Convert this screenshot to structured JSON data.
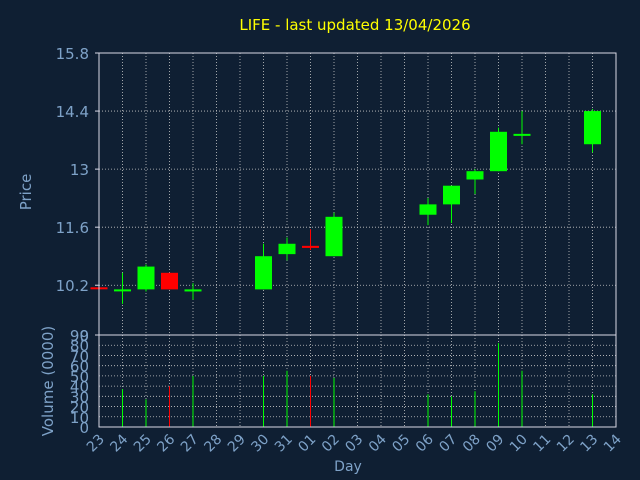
{
  "chart_data": {
    "type": "candlestick",
    "title": "LIFE - last updated 13/04/2026",
    "xlabel": "Day",
    "price_panel": {
      "ylabel": "Price",
      "ylim": [
        9.0,
        15.8
      ],
      "y_ticks": [
        "15.8",
        "14.4",
        "13",
        "11.6",
        "10.2",
        "9"
      ]
    },
    "volume_panel": {
      "ylabel": "Volume (0000)",
      "ylim": [
        0,
        90
      ],
      "y_ticks": [
        "90",
        "80",
        "70",
        "60",
        "50",
        "40",
        "30",
        "20",
        "10",
        "0"
      ]
    },
    "x_ticks": [
      "23",
      "24",
      "25",
      "26",
      "27",
      "28",
      "29",
      "30",
      "31",
      "01",
      "02",
      "03",
      "04",
      "05",
      "06",
      "07",
      "08",
      "09",
      "10",
      "11",
      "12",
      "13",
      "14"
    ],
    "candles": [
      {
        "day": "23",
        "open": 10.15,
        "high": 10.15,
        "low": 10.12,
        "close": 10.12,
        "volume": 0
      },
      {
        "day": "24",
        "open": 10.1,
        "high": 10.5,
        "low": 9.75,
        "close": 10.1,
        "volume": 37
      },
      {
        "day": "25",
        "open": 10.1,
        "high": 10.7,
        "low": 10.05,
        "close": 10.65,
        "volume": 27
      },
      {
        "day": "26",
        "open": 10.5,
        "high": 10.5,
        "low": 10.1,
        "close": 10.1,
        "volume": 40
      },
      {
        "day": "27",
        "open": 10.05,
        "high": 10.25,
        "low": 9.85,
        "close": 10.1,
        "volume": 50
      },
      {
        "day": "30",
        "open": 10.1,
        "high": 11.2,
        "low": 10.1,
        "close": 10.9,
        "volume": 50
      },
      {
        "day": "31",
        "open": 10.95,
        "high": 11.35,
        "low": 10.8,
        "close": 11.2,
        "volume": 55
      },
      {
        "day": "01",
        "open": 11.15,
        "high": 11.55,
        "low": 11.05,
        "close": 11.1,
        "volume": 50
      },
      {
        "day": "02",
        "open": 10.9,
        "high": 11.95,
        "low": 10.9,
        "close": 11.85,
        "volume": 48
      },
      {
        "day": "06",
        "open": 11.9,
        "high": 12.3,
        "low": 11.65,
        "close": 12.15,
        "volume": 32
      },
      {
        "day": "07",
        "open": 12.15,
        "high": 12.6,
        "low": 11.7,
        "close": 12.6,
        "volume": 30
      },
      {
        "day": "08",
        "open": 12.75,
        "high": 13.0,
        "low": 12.4,
        "close": 12.95,
        "volume": 35
      },
      {
        "day": "09",
        "open": 12.95,
        "high": 14.0,
        "low": 12.95,
        "close": 13.9,
        "volume": 82
      },
      {
        "day": "10",
        "open": 13.85,
        "high": 14.4,
        "low": 13.6,
        "close": 13.85,
        "volume": 55
      },
      {
        "day": "13",
        "open": 13.6,
        "high": 14.45,
        "low": 13.4,
        "close": 14.4,
        "volume": 32
      }
    ],
    "colors": {
      "background": "#0f1f33",
      "up": "#00ff00",
      "down": "#ff0000",
      "title": "#ffff00",
      "axis_text": "#7ea2c8",
      "frame": "#d8d8e6",
      "grid": "#c8c8c8"
    }
  }
}
